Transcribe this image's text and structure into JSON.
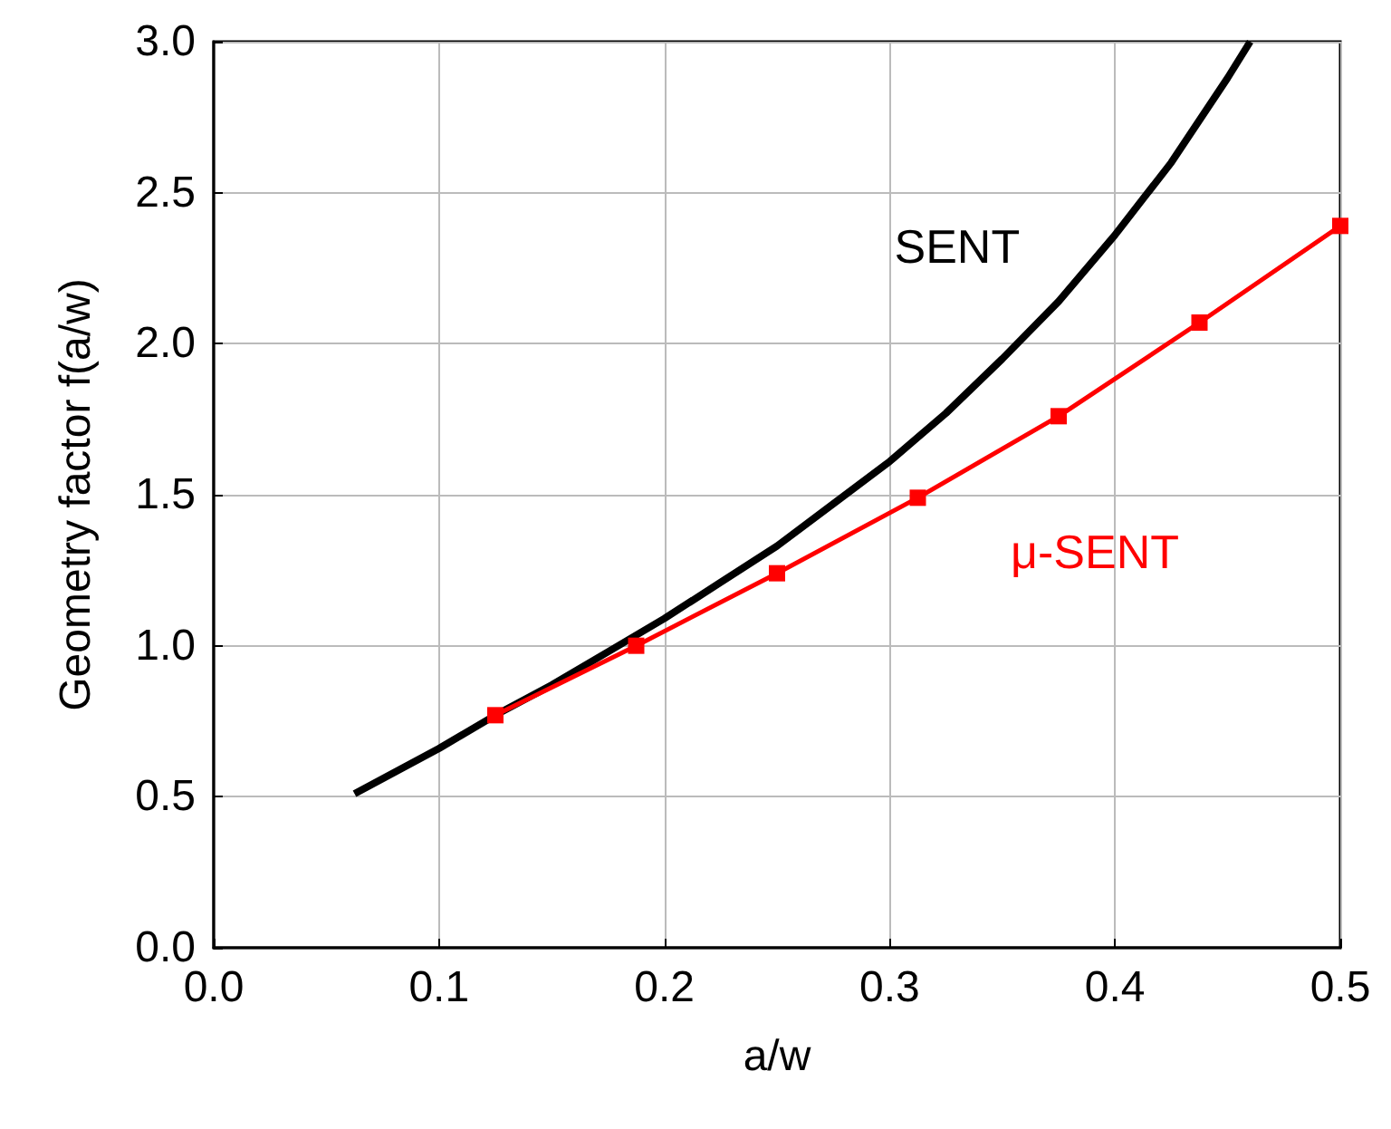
{
  "chart_data": {
    "type": "line",
    "xlabel": "a/w",
    "ylabel": "Geometry factor f(a/w)",
    "xlim": [
      0,
      0.5
    ],
    "xticks": [
      {
        "value": 0,
        "label": "0.0"
      },
      {
        "value": 0.1,
        "label": "0.1"
      },
      {
        "value": 0.2,
        "label": "0.2"
      },
      {
        "value": 0.3,
        "label": "0.3"
      },
      {
        "value": 0.4,
        "label": "0.4"
      },
      {
        "value": 0.5,
        "label": "0.5"
      }
    ],
    "ylim": [
      0,
      3
    ],
    "yticks": [
      {
        "value": 0,
        "label": "0.0"
      },
      {
        "value": 0.5,
        "label": "0.5"
      },
      {
        "value": 1,
        "label": "1.0"
      },
      {
        "value": 1.5,
        "label": "1.5"
      },
      {
        "value": 2,
        "label": "2.0"
      },
      {
        "value": 2.5,
        "label": "2.5"
      },
      {
        "value": 3,
        "label": "3.0"
      }
    ],
    "grid": true,
    "series": [
      {
        "name": "SENT",
        "color": "#000000",
        "marker": "none",
        "x": [
          0.0625,
          0.1,
          0.125,
          0.15,
          0.175,
          0.2,
          0.225,
          0.25,
          0.275,
          0.3,
          0.325,
          0.35,
          0.375,
          0.4,
          0.425,
          0.45,
          0.46
        ],
        "values": [
          0.51,
          0.66,
          0.77,
          0.87,
          0.98,
          1.09,
          1.21,
          1.33,
          1.47,
          1.61,
          1.77,
          1.95,
          2.14,
          2.36,
          2.6,
          2.88,
          3.0
        ]
      },
      {
        "name": "μ-SENT",
        "color": "#ff0000",
        "marker": "square",
        "x": [
          0.125,
          0.1875,
          0.25,
          0.3125,
          0.375,
          0.4375,
          0.5
        ],
        "values": [
          0.77,
          1.0,
          1.24,
          1.49,
          1.76,
          2.07,
          2.39
        ]
      }
    ]
  }
}
